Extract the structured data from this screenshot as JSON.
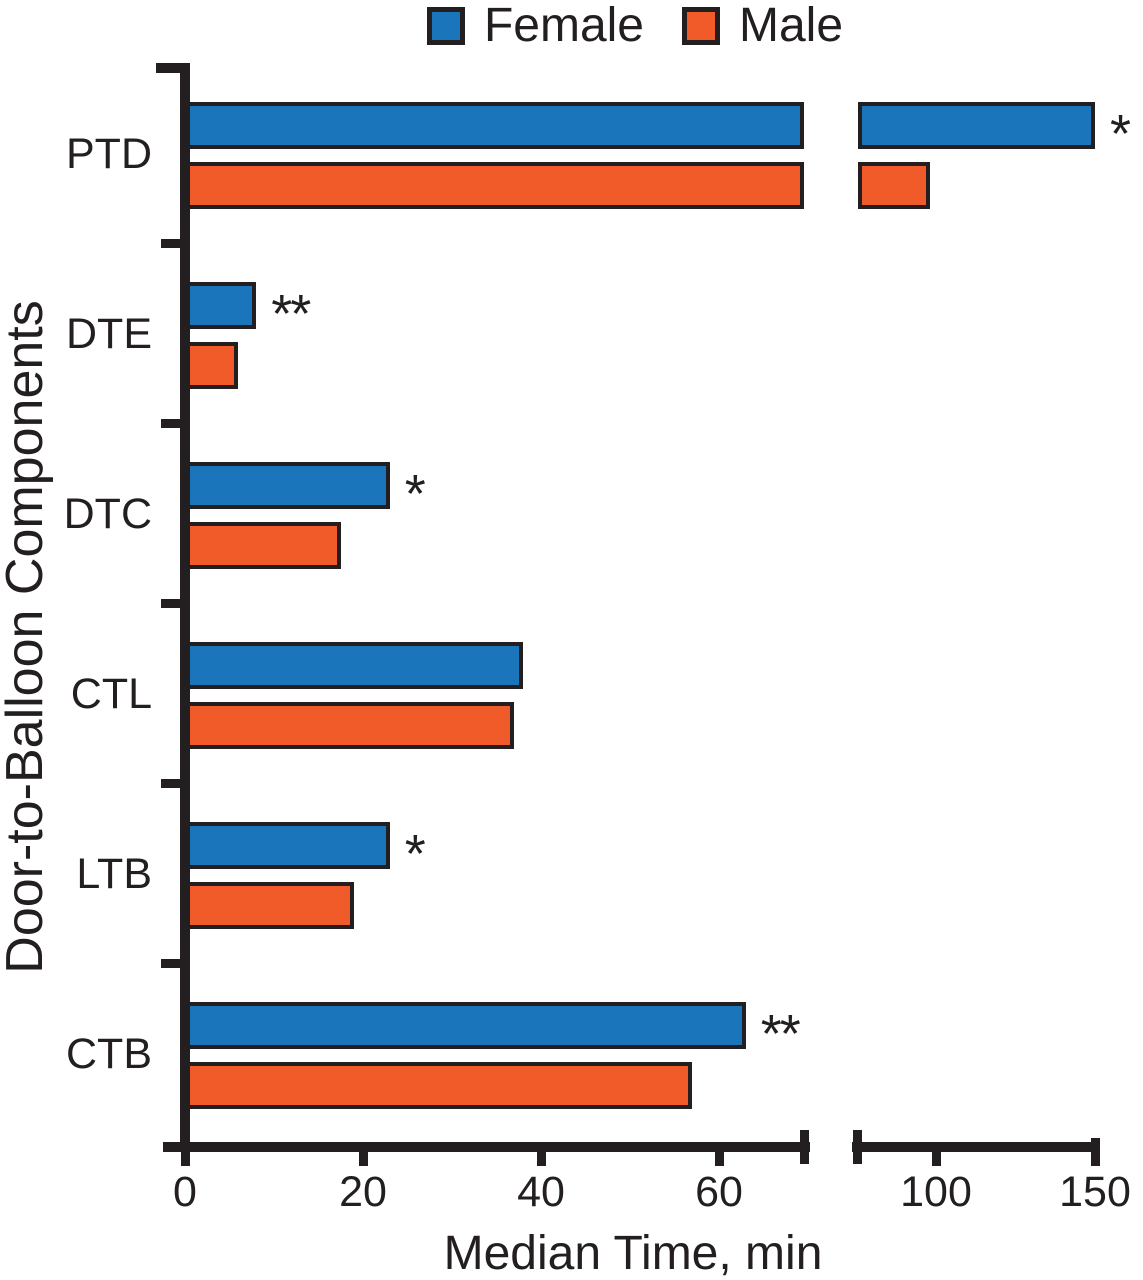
{
  "figure": {
    "background": "#ffffff",
    "ink_color": "#231f20"
  },
  "chart_data": {
    "type": "bar",
    "orientation": "horizontal",
    "title": "",
    "xlabel": "Median Time, min",
    "ylabel": "Door-to-Balloon Components",
    "categories": [
      "PTD",
      "DTE",
      "DTC",
      "CTL",
      "LTB",
      "CTB"
    ],
    "series": [
      {
        "name": "Female",
        "color": "#1b75bb",
        "values": [
          150,
          8,
          23,
          38,
          23,
          63
        ]
      },
      {
        "name": "Male",
        "color": "#f15a29",
        "values": [
          98,
          6,
          17.5,
          37,
          19,
          57
        ]
      }
    ],
    "significance_annotations": [
      "*",
      "**",
      "*",
      "",
      "*",
      "**"
    ],
    "x_axis": {
      "ticks": [
        0,
        20,
        40,
        60,
        100,
        150
      ],
      "xlim": [
        0,
        150
      ],
      "break_after": 70,
      "break_resume": 74
    },
    "grid": false,
    "legend_position": "top"
  }
}
